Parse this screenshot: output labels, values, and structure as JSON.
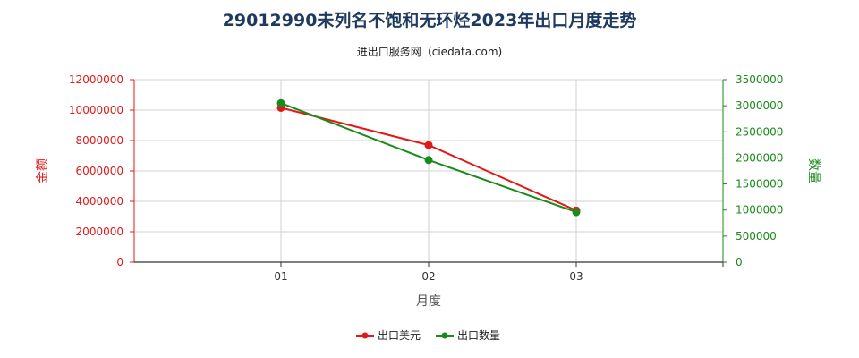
{
  "chart_data": {
    "type": "line",
    "title": "29012990未列名不饱和无环烃2023年出口月度走势",
    "subtitle": "进出口服务网（ciedata.com)",
    "xlabel": "月度",
    "ylabel_left": "金额",
    "ylabel_right": "数量",
    "categories": [
      "01",
      "02",
      "03"
    ],
    "ylim_left": [
      0,
      12000000
    ],
    "ylim_right": [
      0,
      3500000
    ],
    "yticks_left": [
      "0",
      "2000000",
      "4000000",
      "6000000",
      "8000000",
      "10000000",
      "12000000"
    ],
    "yticks_right": [
      "0",
      "500000",
      "1000000",
      "1500000",
      "2000000",
      "2500000",
      "3000000",
      "3500000"
    ],
    "grid": true,
    "legend_position": "bottom",
    "series": [
      {
        "name": "出口美元",
        "axis": "left",
        "color": "#e01a1a",
        "values": [
          10150000,
          7700000,
          3400000
        ]
      },
      {
        "name": "出口数量",
        "axis": "right",
        "color": "#1a8a1a",
        "values": [
          3050000,
          1960000,
          960000
        ]
      }
    ]
  }
}
